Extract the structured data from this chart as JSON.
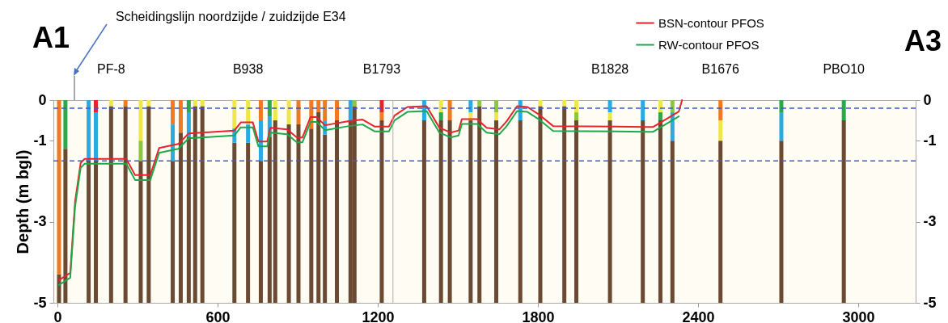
{
  "chart_data": {
    "type": "bar",
    "ylabel": "Depth (m bgl)",
    "xlim": [
      0,
      3200
    ],
    "xticks": [
      0,
      600,
      1200,
      1800,
      2400,
      3000
    ],
    "ylim": [
      -5,
      0
    ],
    "yticks": [
      0,
      -1,
      -3,
      -5
    ],
    "y2lim": [
      -5,
      0
    ],
    "y2ticks": [
      0,
      -1,
      -3,
      -5
    ],
    "grid": false,
    "legend": "top",
    "x": [
      6,
      30,
      117,
      144,
      201,
      255,
      312,
      342,
      432,
      462,
      492,
      516,
      543,
      663,
      714,
      762,
      795,
      816,
      867,
      903,
      951,
      978,
      1002,
      1047,
      1098,
      1113,
      1215,
      1374,
      1437,
      1470,
      1548,
      1581,
      1644,
      1734,
      1809,
      1899,
      1944,
      2070,
      2193,
      2259,
      2304,
      2484,
      2712,
      2946
    ],
    "series": [
      {
        "color": "#6b4a33",
        "base": [
          -5,
          -5,
          -5,
          -5,
          -5,
          -5,
          -5,
          -5,
          -5,
          -5,
          -5,
          -5,
          -5,
          -5,
          -5,
          -5,
          -5,
          -5,
          -5,
          -5,
          -5,
          -5,
          -5,
          -5,
          -5,
          -5,
          -5,
          -5,
          -5,
          -5,
          -5,
          -5,
          -5,
          -5,
          -5,
          -5,
          -5,
          -5,
          -5,
          -5,
          -5,
          -5,
          -5,
          -5
        ],
        "values": [
          0.7,
          3.8,
          3.5,
          3.5,
          4.85,
          4.85,
          3.5,
          4.85,
          3.5,
          4.2,
          4.1,
          4.85,
          4.85,
          3.95,
          3.95,
          3.5,
          4.1,
          4.5,
          4.4,
          4.4,
          4.3,
          4.7,
          4.15,
          4.5,
          4.5,
          4.85,
          4.5,
          4.5,
          4.5,
          4.5,
          4.5,
          4.85,
          4.5,
          4.5,
          4.85,
          4.85,
          4.5,
          4.5,
          4.5,
          4.5,
          4.0,
          4.0,
          4.0,
          4.5
        ]
      },
      {
        "base": [
          null,
          null,
          null,
          -1.5,
          null,
          null,
          -1.5,
          null,
          -1.5,
          null,
          -0.9,
          null,
          null,
          -1.05,
          -1.05,
          -1.5,
          -0.9,
          null,
          null,
          null,
          null,
          null,
          -0.85,
          null,
          null,
          null,
          -0.5,
          null,
          -0.5,
          null,
          -0.5,
          null,
          -0.5,
          null,
          null,
          null,
          -0.5,
          -0.5,
          null,
          -0.5,
          -1.0,
          -1.0,
          -1.0,
          null
        ],
        "values": [
          null,
          null,
          null,
          1.2,
          null,
          null,
          0.5,
          null,
          0.9,
          null,
          0.6,
          null,
          null,
          0.35,
          0.45,
          1.0,
          0.5,
          null,
          null,
          null,
          null,
          null,
          0.35,
          null,
          null,
          null,
          0.2,
          null,
          0.2,
          null,
          0.2,
          null,
          0.2,
          null,
          null,
          null,
          0.2,
          0.2,
          null,
          0.2,
          0.7,
          0.5,
          0.7,
          null
        ],
        "colors": [
          null,
          null,
          null,
          "#29abe2",
          null,
          null,
          "#8dc63f",
          null,
          "#29abe2",
          null,
          "#29abe2",
          null,
          null,
          "#29abe2",
          "#29abe2",
          "#29abe2",
          "#29abe2",
          null,
          null,
          null,
          null,
          null,
          "#29abe2",
          null,
          null,
          null,
          "#f07a22",
          null,
          "#2ba84a",
          null,
          "#efe64a",
          null,
          "#efe64a",
          null,
          null,
          null,
          "#8dc63f",
          "#efe64a",
          null,
          "#2ba84a",
          "#29abe2",
          "#efe64a",
          "#29abe2",
          null
        ]
      },
      {
        "base": [
          -4.3,
          -1.2,
          -1.5,
          -0.3,
          -0.15,
          -0.15,
          -1.0,
          -0.15,
          -0.6,
          -0.8,
          -0.3,
          -0.15,
          -0.15,
          -0.7,
          -0.6,
          -0.5,
          -0.4,
          -0.5,
          -0.6,
          -0.6,
          -0.7,
          -0.3,
          -0.5,
          -0.5,
          -0.5,
          -0.15,
          -0.3,
          -0.5,
          -0.3,
          -0.5,
          -0.3,
          -0.15,
          -0.3,
          -0.5,
          -0.15,
          -0.15,
          -0.3,
          -0.3,
          -0.5,
          -0.3,
          -0.3,
          -0.5,
          -0.3,
          -0.5
        ],
        "values": [
          4.3,
          1.2,
          1.5,
          0.3,
          0.15,
          0.15,
          1.0,
          0.15,
          0.6,
          0.8,
          0.3,
          0.15,
          0.15,
          0.7,
          0.6,
          0.5,
          0.4,
          0.5,
          0.6,
          0.6,
          0.7,
          0.3,
          0.5,
          0.5,
          0.5,
          0.15,
          0.3,
          0.5,
          0.3,
          0.5,
          0.3,
          0.15,
          0.3,
          0.5,
          0.15,
          0.15,
          0.3,
          0.3,
          0.5,
          0.3,
          0.3,
          0.5,
          0.3,
          0.5
        ],
        "colors": [
          "#f07a22",
          "#2ba84a",
          "#29abe2",
          "#e3262b",
          "#efe64a",
          "#f07a22",
          "#efe64a",
          "#efe64a",
          "#f07a22",
          "#f07a22",
          "#2ba84a",
          "#efe64a",
          "#efe64a",
          "#efe64a",
          "#efe64a",
          "#f07a22",
          "#2ba84a",
          "#efe64a",
          "#efe64a",
          "#f07a22",
          "#f07a22",
          "#f07a22",
          "#f07a22",
          "#f07a22",
          "#29abe2",
          "#8dc63f",
          "#e3262b",
          "#29abe2",
          "#efe64a",
          "#f07a22",
          "#29abe2",
          "#8dc63f",
          "#8dc63f",
          "#29abe2",
          "#efe64a",
          "#efe64a",
          "#efe64a",
          "#29abe2",
          "#29abe2",
          "#efe64a",
          "#8dc63f",
          "#f07a22",
          "#2ba84a",
          "#2ba84a"
        ]
      },
      {
        "type": "line",
        "name": "BSN-contour PFOS",
        "color": "#e8232a",
        "x": [
          6,
          48,
          66,
          87,
          102,
          258,
          291,
          348,
          381,
          453,
          492,
          663,
          687,
          732,
          753,
          786,
          798,
          861,
          897,
          918,
          948,
          972,
          1002,
          1092,
          1143,
          1188,
          1242,
          1263,
          1311,
          1383,
          1431,
          1473,
          1503,
          1515,
          1572,
          1608,
          1656,
          1683,
          1722,
          1761,
          1803,
          1857,
          2202,
          2232,
          2328,
          2340
        ],
        "values": [
          -4.44,
          -4.26,
          -2.51,
          -1.55,
          -1.45,
          -1.45,
          -1.85,
          -1.85,
          -1.18,
          -1.08,
          -0.82,
          -0.75,
          -0.55,
          -0.55,
          -1.02,
          -1.02,
          -0.68,
          -0.72,
          -0.92,
          -0.92,
          -0.42,
          -0.42,
          -0.62,
          -0.52,
          -0.48,
          -0.65,
          -0.65,
          -0.38,
          -0.17,
          -0.15,
          -0.68,
          -0.8,
          -0.75,
          -0.47,
          -0.47,
          -0.68,
          -0.72,
          -0.52,
          -0.15,
          -0.17,
          -0.35,
          -0.64,
          -0.66,
          -0.66,
          -0.28,
          0
        ]
      },
      {
        "type": "line",
        "name": "RW-contour PFOS",
        "color": "#1fa84a",
        "x": [
          6,
          48,
          66,
          87,
          102,
          258,
          291,
          348,
          381,
          453,
          492,
          663,
          687,
          732,
          753,
          786,
          798,
          861,
          897,
          918,
          948,
          972,
          1002,
          1092,
          1143,
          1188,
          1242,
          1263,
          1311,
          1383,
          1431,
          1473,
          1503,
          1515,
          1572,
          1608,
          1656,
          1683,
          1722,
          1761,
          1803,
          1857,
          2202,
          2232,
          2328
        ],
        "values": [
          -4.56,
          -4.38,
          -2.63,
          -1.67,
          -1.57,
          -1.57,
          -1.97,
          -1.97,
          -1.3,
          -1.2,
          -0.94,
          -0.87,
          -0.67,
          -0.67,
          -1.14,
          -1.14,
          -0.8,
          -0.84,
          -1.04,
          -1.04,
          -0.54,
          -0.54,
          -0.74,
          -0.64,
          -0.6,
          -0.77,
          -0.77,
          -0.5,
          -0.29,
          -0.27,
          -0.8,
          -0.92,
          -0.87,
          -0.59,
          -0.59,
          -0.8,
          -0.84,
          -0.64,
          -0.27,
          -0.29,
          -0.47,
          -0.76,
          -0.78,
          -0.78,
          -0.4
        ]
      }
    ],
    "ref_lines": [
      {
        "axis": "y",
        "value": -0.2,
        "color": "#3a5bd0",
        "line_style": "dashed"
      },
      {
        "axis": "y",
        "value": -1.5,
        "color": "#3a5bd0",
        "line_style": "dashed"
      },
      {
        "axis": "x",
        "value": 1257,
        "color": "#b0b0b0",
        "line_style": "solid"
      }
    ],
    "annotations": [
      "A1",
      "Scheidingslijn noordzijde / zuidzijde E34",
      "A3",
      {
        "text": "PF-8",
        "x": 201,
        "y": 0
      },
      {
        "text": "B938",
        "x": 714,
        "y": 0
      },
      {
        "text": "B1793",
        "x": 1215,
        "y": 0
      },
      {
        "text": "B1828",
        "x": 2070,
        "y": 0
      },
      {
        "text": "B1676",
        "x": 2484,
        "y": 0
      },
      {
        "text": "PBO10",
        "x": 2946,
        "y": 0
      }
    ]
  }
}
